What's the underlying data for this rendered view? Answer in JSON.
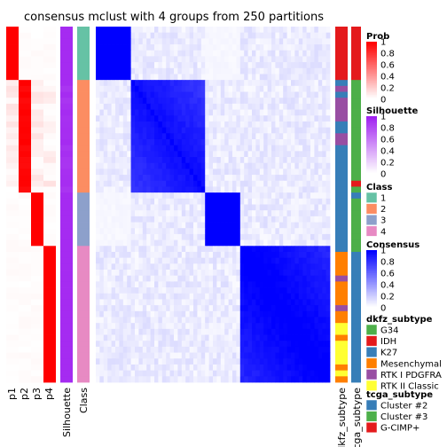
{
  "chart_data": {
    "type": "heatmap",
    "title": "consensus mclust with 4 groups from 250 partitions",
    "n_samples": 60,
    "left_tracks": [
      "p1",
      "p2",
      "p3",
      "p4",
      "Silhouette",
      "Class"
    ],
    "right_tracks": [
      "dkfz_subtype",
      "tcga_subtype"
    ],
    "groups": [
      {
        "class": 1,
        "count": 9,
        "color": "#66C2A5"
      },
      {
        "class": 2,
        "count": 19,
        "color": "#FC8D62"
      },
      {
        "class": 3,
        "count": 9,
        "color": "#8DA0CB"
      },
      {
        "class": 4,
        "count": 23,
        "color": "#E78AC3"
      }
    ],
    "within_group_consensus": {
      "1": 1.0,
      "2": 0.75,
      "3": 1.0,
      "4": 0.82
    },
    "dkfz_subtype_by_sample": [
      "IDH",
      "IDH",
      "IDH",
      "IDH",
      "IDH",
      "IDH",
      "IDH",
      "IDH",
      "IDH",
      "K27",
      "RTK I PDGFRA",
      "K27",
      "RTK I PDGFRA",
      "RTK I PDGFRA",
      "RTK I PDGFRA",
      "RTK I PDGFRA",
      "K27",
      "K27",
      "RTK I PDGFRA",
      "RTK I PDGFRA",
      "K27",
      "K27",
      "K27",
      "K27",
      "K27",
      "K27",
      "K27",
      "K27",
      "K27",
      "K27",
      "K27",
      "K27",
      "K27",
      "K27",
      "K27",
      "K27",
      "K27",
      "K27",
      "Mesenchymal",
      "Mesenchymal",
      "Mesenchymal",
      "Mesenchymal",
      "RTK I PDGFRA",
      "Mesenchymal",
      "Mesenchymal",
      "Mesenchymal",
      "Mesenchymal",
      "RTK I PDGFRA",
      "Mesenchymal",
      "Mesenchymal",
      "RTK II Classic",
      "RTK II Classic",
      "Mesenchymal",
      "RTK II Classic",
      "RTK II Classic",
      "RTK II Classic",
      "RTK II Classic",
      "Mesenchymal",
      "RTK II Classic",
      "Mesenchymal"
    ],
    "tcga_subtype_by_sample": [
      "G-CIMP+",
      "G-CIMP+",
      "G-CIMP+",
      "G-CIMP+",
      "G-CIMP+",
      "G-CIMP+",
      "G-CIMP+",
      "G-CIMP+",
      "G-CIMP+",
      "Cluster #3",
      "Cluster #3",
      "Cluster #3",
      "Cluster #3",
      "Cluster #3",
      "Cluster #3",
      "Cluster #3",
      "Cluster #3",
      "Cluster #3",
      "Cluster #3",
      "Cluster #3",
      "Cluster #3",
      "Cluster #3",
      "Cluster #3",
      "Cluster #3",
      "Cluster #3",
      "Cluster #3",
      "G-CIMP+",
      "Cluster #3",
      "Cluster #2",
      "Cluster #3",
      "Cluster #3",
      "Cluster #3",
      "Cluster #3",
      "Cluster #3",
      "Cluster #3",
      "Cluster #3",
      "Cluster #3",
      "Cluster #3",
      "Cluster #2",
      "Cluster #2",
      "Cluster #2",
      "Cluster #2",
      "Cluster #2",
      "Cluster #2",
      "Cluster #2",
      "Cluster #2",
      "Cluster #2",
      "Cluster #2",
      "Cluster #2",
      "Cluster #2",
      "Cluster #2",
      "Cluster #2",
      "Cluster #2",
      "Cluster #2",
      "Cluster #2",
      "Cluster #2",
      "Cluster #2",
      "Cluster #2",
      "Cluster #2",
      "Cluster #2"
    ],
    "legends": [
      {
        "title": "Prob",
        "type": "continuous",
        "low_color": "#FFFFFF",
        "high_color": "#FF0000",
        "ticks": [
          "1",
          "0.8",
          "0.6",
          "0.4",
          "0.2",
          "0"
        ]
      },
      {
        "title": "Silhouette",
        "type": "continuous",
        "low_color": "#FFFFFF",
        "high_color": "#A020F0",
        "ticks": [
          "1",
          "0.8",
          "0.6",
          "0.4",
          "0.2",
          "0"
        ]
      },
      {
        "title": "Class",
        "type": "discrete",
        "items": [
          {
            "label": "1",
            "color": "#66C2A5"
          },
          {
            "label": "2",
            "color": "#FC8D62"
          },
          {
            "label": "3",
            "color": "#8DA0CB"
          },
          {
            "label": "4",
            "color": "#E78AC3"
          }
        ]
      },
      {
        "title": "Consensus",
        "type": "continuous",
        "low_color": "#FFFFFF",
        "high_color": "#0000FF",
        "ticks": [
          "1",
          "0.8",
          "0.6",
          "0.4",
          "0.2",
          "0"
        ]
      },
      {
        "title": "dkfz_subtype",
        "type": "discrete",
        "items": [
          {
            "label": "G34",
            "color": "#4DAF4A"
          },
          {
            "label": "IDH",
            "color": "#E41A1C"
          },
          {
            "label": "K27",
            "color": "#377EB8"
          },
          {
            "label": "Mesenchymal",
            "color": "#FF7F00"
          },
          {
            "label": "RTK I PDGFRA",
            "color": "#984EA3"
          },
          {
            "label": "RTK II Classic",
            "color": "#FFFF33"
          }
        ]
      },
      {
        "title": "tcga_subtype",
        "type": "discrete",
        "items": [
          {
            "label": "Cluster #2",
            "color": "#377EB8"
          },
          {
            "label": "Cluster #3",
            "color": "#4DAF4A"
          },
          {
            "label": "G-CIMP+",
            "color": "#E41A1C"
          }
        ]
      }
    ]
  }
}
